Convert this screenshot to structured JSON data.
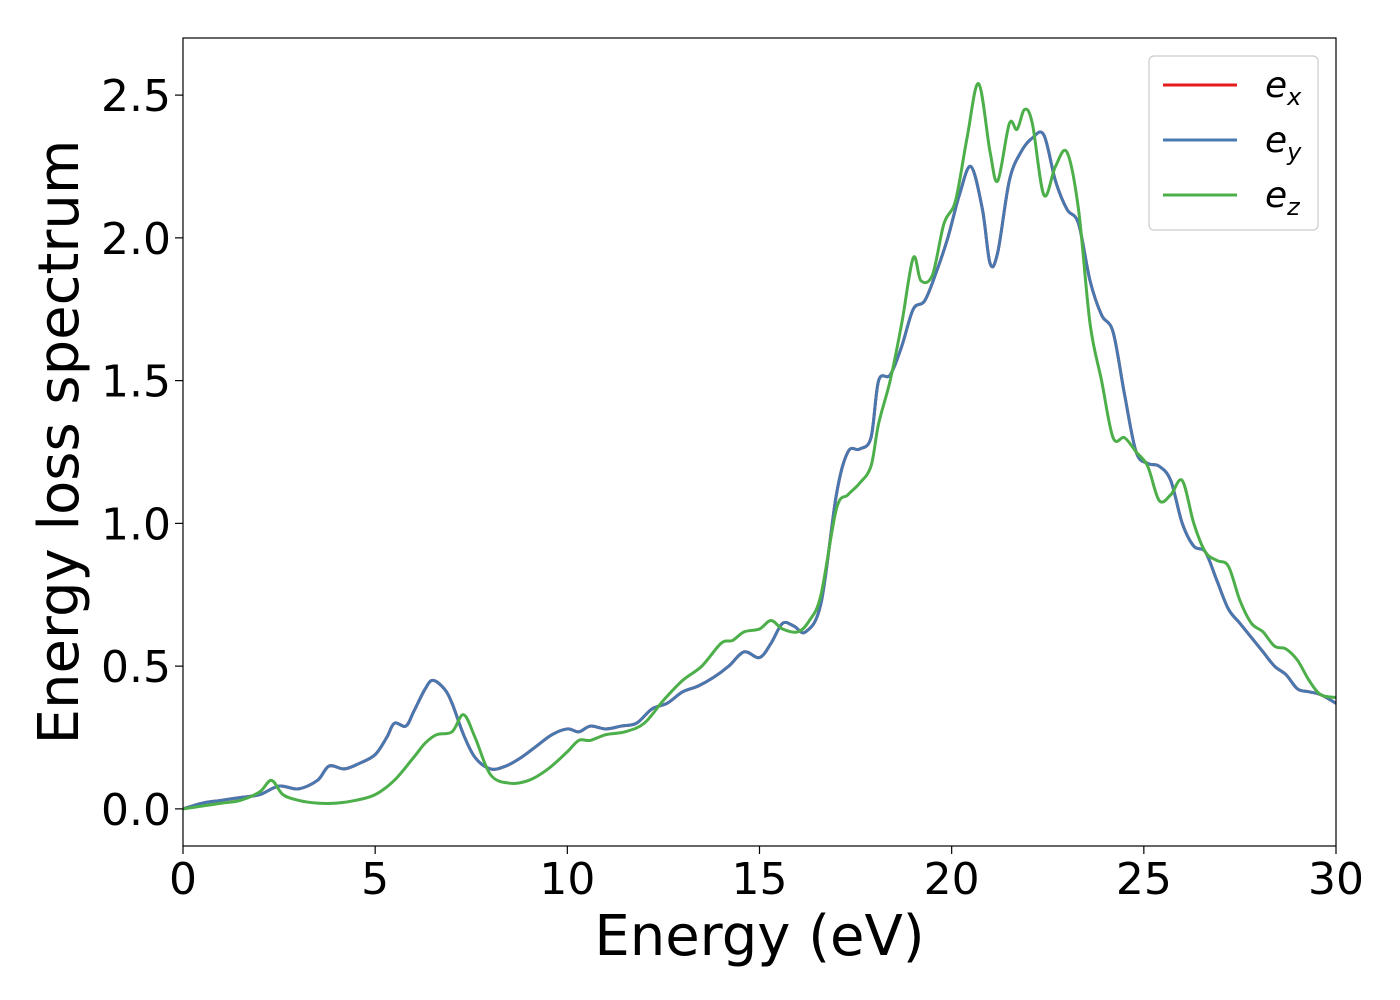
{
  "chart_data": {
    "type": "line",
    "xlabel": "Energy (eV)",
    "ylabel": "Energy loss spectrum",
    "xlim": [
      0,
      30
    ],
    "ylim": [
      -0.13,
      2.7
    ],
    "xticks": [
      0,
      5,
      10,
      15,
      20,
      25,
      30
    ],
    "xtick_labels": [
      "0",
      "5",
      "10",
      "15",
      "20",
      "25",
      "30"
    ],
    "yticks": [
      0.0,
      0.5,
      1.0,
      1.5,
      2.0,
      2.5
    ],
    "ytick_labels": [
      "0.0",
      "0.5",
      "1.0",
      "1.5",
      "2.0",
      "2.5"
    ],
    "grid": false,
    "legend_position": "top-right",
    "series": [
      {
        "name": "e_x",
        "label_base": "e",
        "label_sub": "x",
        "color": "#e41a1c",
        "x": [
          0,
          0.5,
          1,
          1.5,
          2,
          2.5,
          3,
          3.5,
          3.8,
          4.2,
          4.6,
          5,
          5.3,
          5.5,
          5.8,
          6,
          6.3,
          6.5,
          6.8,
          7,
          7.3,
          7.6,
          8,
          8.4,
          8.8,
          9.2,
          9.6,
          10,
          10.3,
          10.6,
          11,
          11.4,
          11.8,
          12.2,
          12.6,
          13,
          13.4,
          13.8,
          14.2,
          14.6,
          15,
          15.3,
          15.6,
          15.9,
          16.2,
          16.6,
          17,
          17.3,
          17.6,
          17.9,
          18.1,
          18.4,
          18.7,
          19,
          19.3,
          19.6,
          19.9,
          20.2,
          20.5,
          20.8,
          21,
          21.2,
          21.5,
          21.8,
          22.1,
          22.4,
          22.7,
          23,
          23.3,
          23.6,
          23.9,
          24.2,
          24.5,
          24.8,
          25.1,
          25.4,
          25.7,
          26,
          26.3,
          26.6,
          26.9,
          27.2,
          27.5,
          27.8,
          28.1,
          28.4,
          28.7,
          29,
          29.3,
          29.6,
          30
        ],
        "y": [
          0,
          0.02,
          0.03,
          0.04,
          0.05,
          0.08,
          0.07,
          0.1,
          0.15,
          0.14,
          0.16,
          0.19,
          0.25,
          0.3,
          0.29,
          0.34,
          0.42,
          0.45,
          0.42,
          0.37,
          0.26,
          0.18,
          0.14,
          0.15,
          0.18,
          0.22,
          0.26,
          0.28,
          0.27,
          0.29,
          0.28,
          0.29,
          0.3,
          0.35,
          0.37,
          0.41,
          0.43,
          0.46,
          0.5,
          0.55,
          0.53,
          0.58,
          0.65,
          0.64,
          0.62,
          0.72,
          1.1,
          1.25,
          1.26,
          1.3,
          1.5,
          1.52,
          1.62,
          1.75,
          1.78,
          1.88,
          2.0,
          2.15,
          2.25,
          2.1,
          1.91,
          1.95,
          2.2,
          2.3,
          2.35,
          2.36,
          2.2,
          2.1,
          2.05,
          1.85,
          1.73,
          1.67,
          1.45,
          1.25,
          1.21,
          1.2,
          1.15,
          1.0,
          0.92,
          0.9,
          0.8,
          0.7,
          0.65,
          0.6,
          0.55,
          0.5,
          0.47,
          0.42,
          0.41,
          0.4,
          0.37
        ]
      },
      {
        "name": "e_y",
        "label_base": "e",
        "label_sub": "y",
        "color": "#4878b0",
        "x": [
          0,
          0.5,
          1,
          1.5,
          2,
          2.5,
          3,
          3.5,
          3.8,
          4.2,
          4.6,
          5,
          5.3,
          5.5,
          5.8,
          6,
          6.3,
          6.5,
          6.8,
          7,
          7.3,
          7.6,
          8,
          8.4,
          8.8,
          9.2,
          9.6,
          10,
          10.3,
          10.6,
          11,
          11.4,
          11.8,
          12.2,
          12.6,
          13,
          13.4,
          13.8,
          14.2,
          14.6,
          15,
          15.3,
          15.6,
          15.9,
          16.2,
          16.6,
          17,
          17.3,
          17.6,
          17.9,
          18.1,
          18.4,
          18.7,
          19,
          19.3,
          19.6,
          19.9,
          20.2,
          20.5,
          20.8,
          21,
          21.2,
          21.5,
          21.8,
          22.1,
          22.4,
          22.7,
          23,
          23.3,
          23.6,
          23.9,
          24.2,
          24.5,
          24.8,
          25.1,
          25.4,
          25.7,
          26,
          26.3,
          26.6,
          26.9,
          27.2,
          27.5,
          27.8,
          28.1,
          28.4,
          28.7,
          29,
          29.3,
          29.6,
          30
        ],
        "y": [
          0,
          0.02,
          0.03,
          0.04,
          0.05,
          0.08,
          0.07,
          0.1,
          0.15,
          0.14,
          0.16,
          0.19,
          0.25,
          0.3,
          0.29,
          0.34,
          0.42,
          0.45,
          0.42,
          0.37,
          0.26,
          0.18,
          0.14,
          0.15,
          0.18,
          0.22,
          0.26,
          0.28,
          0.27,
          0.29,
          0.28,
          0.29,
          0.3,
          0.35,
          0.37,
          0.41,
          0.43,
          0.46,
          0.5,
          0.55,
          0.53,
          0.58,
          0.65,
          0.64,
          0.62,
          0.72,
          1.1,
          1.25,
          1.26,
          1.3,
          1.5,
          1.52,
          1.62,
          1.75,
          1.78,
          1.88,
          2.0,
          2.15,
          2.25,
          2.1,
          1.91,
          1.95,
          2.2,
          2.3,
          2.35,
          2.36,
          2.2,
          2.1,
          2.05,
          1.85,
          1.73,
          1.67,
          1.45,
          1.25,
          1.21,
          1.2,
          1.15,
          1.0,
          0.92,
          0.9,
          0.8,
          0.7,
          0.65,
          0.6,
          0.55,
          0.5,
          0.47,
          0.42,
          0.41,
          0.4,
          0.37
        ]
      },
      {
        "name": "e_z",
        "label_base": "e",
        "label_sub": "z",
        "color": "#4daf4a",
        "x": [
          0,
          0.5,
          1,
          1.5,
          2,
          2.3,
          2.6,
          3,
          3.5,
          4,
          4.5,
          5,
          5.5,
          6,
          6.3,
          6.6,
          7,
          7.3,
          7.6,
          8,
          8.5,
          9,
          9.5,
          10,
          10.3,
          10.6,
          11,
          11.5,
          12,
          12.5,
          13,
          13.5,
          14,
          14.3,
          14.6,
          15,
          15.3,
          15.6,
          16,
          16.3,
          16.6,
          17,
          17.3,
          17.6,
          17.9,
          18.1,
          18.4,
          18.7,
          19,
          19.2,
          19.5,
          19.8,
          20.1,
          20.4,
          20.7,
          21,
          21.2,
          21.5,
          21.7,
          21.9,
          22.1,
          22.4,
          22.7,
          23,
          23.3,
          23.6,
          23.9,
          24.2,
          24.5,
          24.8,
          25.1,
          25.4,
          25.7,
          26,
          26.3,
          26.6,
          26.9,
          27.2,
          27.5,
          27.8,
          28.1,
          28.4,
          28.7,
          29,
          29.3,
          29.6,
          30
        ],
        "y": [
          0,
          0.01,
          0.02,
          0.03,
          0.06,
          0.1,
          0.05,
          0.03,
          0.02,
          0.02,
          0.03,
          0.05,
          0.1,
          0.18,
          0.23,
          0.26,
          0.27,
          0.33,
          0.25,
          0.12,
          0.09,
          0.1,
          0.14,
          0.2,
          0.24,
          0.24,
          0.26,
          0.27,
          0.3,
          0.38,
          0.45,
          0.5,
          0.58,
          0.59,
          0.62,
          0.63,
          0.66,
          0.63,
          0.62,
          0.66,
          0.75,
          1.05,
          1.1,
          1.14,
          1.2,
          1.35,
          1.5,
          1.7,
          1.93,
          1.85,
          1.87,
          2.05,
          2.13,
          2.35,
          2.54,
          2.3,
          2.2,
          2.4,
          2.38,
          2.45,
          2.4,
          2.15,
          2.25,
          2.3,
          2.1,
          1.7,
          1.5,
          1.3,
          1.3,
          1.25,
          1.2,
          1.08,
          1.1,
          1.15,
          1.0,
          0.9,
          0.87,
          0.85,
          0.73,
          0.65,
          0.62,
          0.57,
          0.56,
          0.52,
          0.45,
          0.4,
          0.39
        ]
      }
    ]
  }
}
